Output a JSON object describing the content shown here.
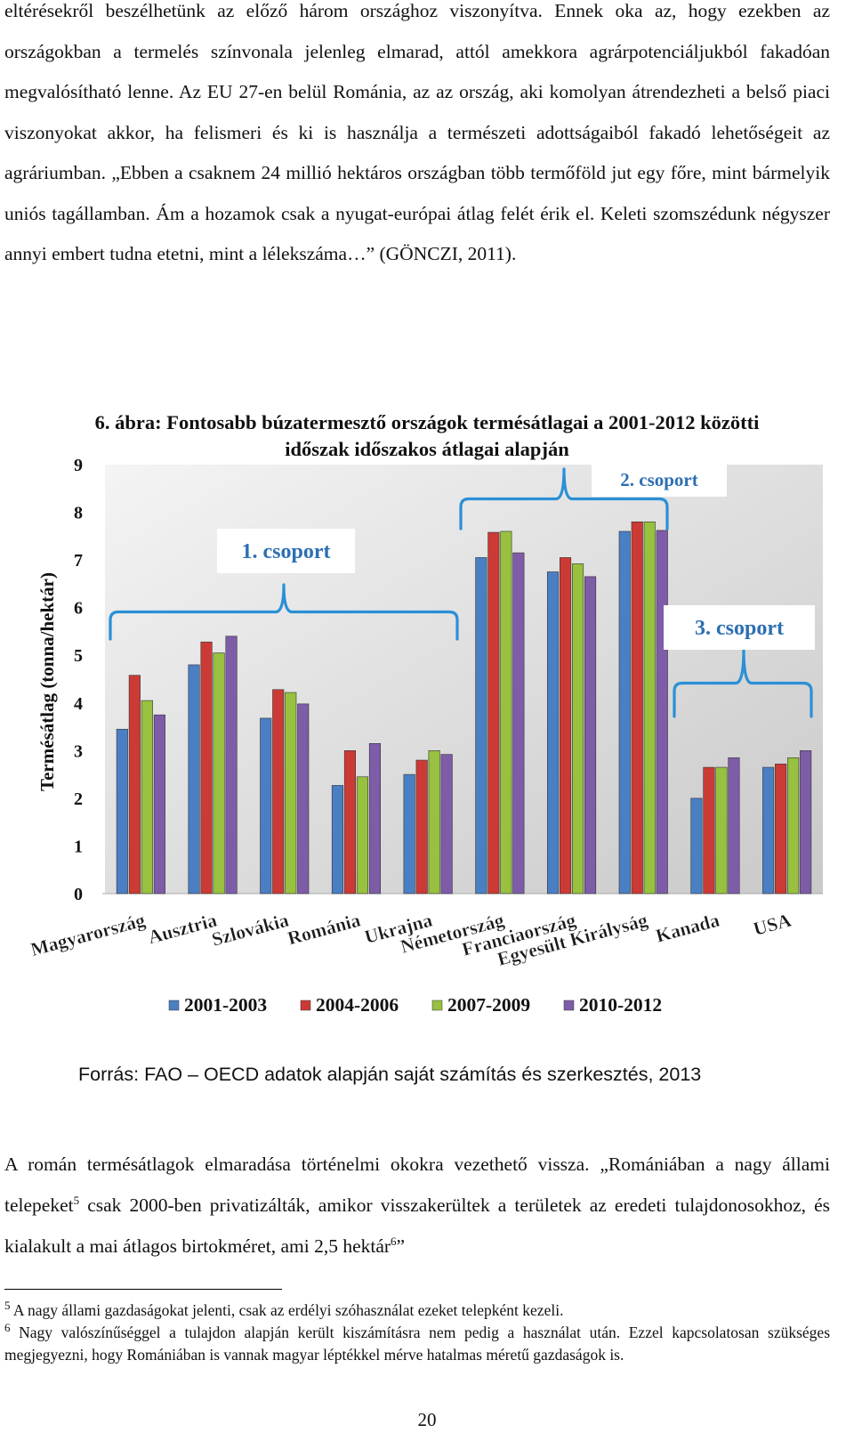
{
  "intro": {
    "line1": "eltérésekről beszélhetünk az előző három országhoz viszonyítva. Ennek oka az, hogy ezekben az országokban a termelés színvonala jelenleg elmarad, attól amekkora agrárpotenciáljukból fakadóan megvalósítható lenne. Az EU 27-en belül Románia, az az ország, aki komolyan átrendezheti a belső piaci viszonyokat akkor, ha felismeri és ki is használja a természeti adottságaiból fakadó lehetőségeit az agráriumban. „Ebben a csaknem 24 millió hektáros országban több termőföld jut egy főre, mint bármelyik uniós tagállamban. Ám a hozamok csak a nyugat-európai átlag felét érik el. Keleti szomszédunk négyszer annyi embert tudna etetni, mint a lélekszáma…” (GÖNCZI, 2011)."
  },
  "figure": {
    "caption_line1": "6. ábra: Fontosabb búzatermesztő országok termésátlagai a 2001-2012 közötti",
    "caption_line2": "időszak időszakos átlagai alapján",
    "source": "Forrás: FAO – OECD adatok alapján saját számítás és szerkesztés, 2013"
  },
  "chart_data": {
    "type": "bar",
    "title": "6. ábra: Fontosabb búzatermesztő országok termésátlagai a 2001-2012 közötti időszak időszakos átlagai alapján",
    "ylabel": "Termésátlag (tonna/hektár)",
    "xlabel": "",
    "ylim": [
      0,
      9
    ],
    "yticks": [
      0,
      1,
      2,
      3,
      4,
      5,
      6,
      7,
      8,
      9
    ],
    "grid": false,
    "legend_position": "bottom",
    "categories": [
      "Magyarország",
      "Ausztria",
      "Szlovákia",
      "Románia",
      "Ukrajna",
      "Németország",
      "Franciaország",
      "Egyesült Királyság",
      "Kanada",
      "USA"
    ],
    "series": [
      {
        "name": "2001-2003",
        "color": "#4a7fc4",
        "values": [
          3.45,
          4.8,
          3.68,
          2.27,
          2.5,
          7.05,
          6.75,
          7.6,
          2.0,
          2.65
        ]
      },
      {
        "name": "2004-2006",
        "color": "#cc3a35",
        "values": [
          4.58,
          5.28,
          4.28,
          3.0,
          2.8,
          7.58,
          7.05,
          7.8,
          2.65,
          2.72
        ]
      },
      {
        "name": "2007-2009",
        "color": "#97c13e",
        "values": [
          4.05,
          5.05,
          4.22,
          2.45,
          3.0,
          7.6,
          6.92,
          7.8,
          2.65,
          2.85
        ]
      },
      {
        "name": "2010-2012",
        "color": "#7e5ca8",
        "values": [
          3.75,
          5.4,
          3.98,
          3.15,
          2.92,
          7.15,
          6.65,
          7.62,
          2.85,
          3.0
        ]
      }
    ],
    "annotations": [
      {
        "label": "1. csoport",
        "members": [
          "Magyarország",
          "Ausztria",
          "Szlovákia",
          "Románia",
          "Ukrajna"
        ]
      },
      {
        "label": "2. csoport",
        "members": [
          "Németország",
          "Franciaország",
          "Egyesült Királyság"
        ]
      },
      {
        "label": "3. csoport",
        "members": [
          "Kanada",
          "USA"
        ]
      }
    ]
  },
  "after": {
    "line1": "A román termésátlagok elmaradása történelmi okokra vezethető vissza. „Romániában a nagy állami telepeket",
    "fn_ref1": "5",
    "line2": " csak 2000-ben privatizálták, amikor visszakerültek a területek az eredeti tulajdonosokhoz, és kialakult a mai átlagos birtokméret, ami 2,5 hektár",
    "fn_ref2": "6",
    "line3": "”"
  },
  "footnotes": [
    {
      "num": "5",
      "text": " A nagy állami gazdaságokat jelenti, csak az erdélyi szóhasználat ezeket telepként kezeli."
    },
    {
      "num": "6",
      "text": " Nagy valószínűséggel a tulajdon alapján került kiszámításra nem pedig a használat után. Ezzel kapcsolatosan szükséges megjegyezni, hogy Romániában is vannak magyar léptékkel mérve hatalmas méretű gazdaságok is."
    }
  ],
  "page_number": "20"
}
